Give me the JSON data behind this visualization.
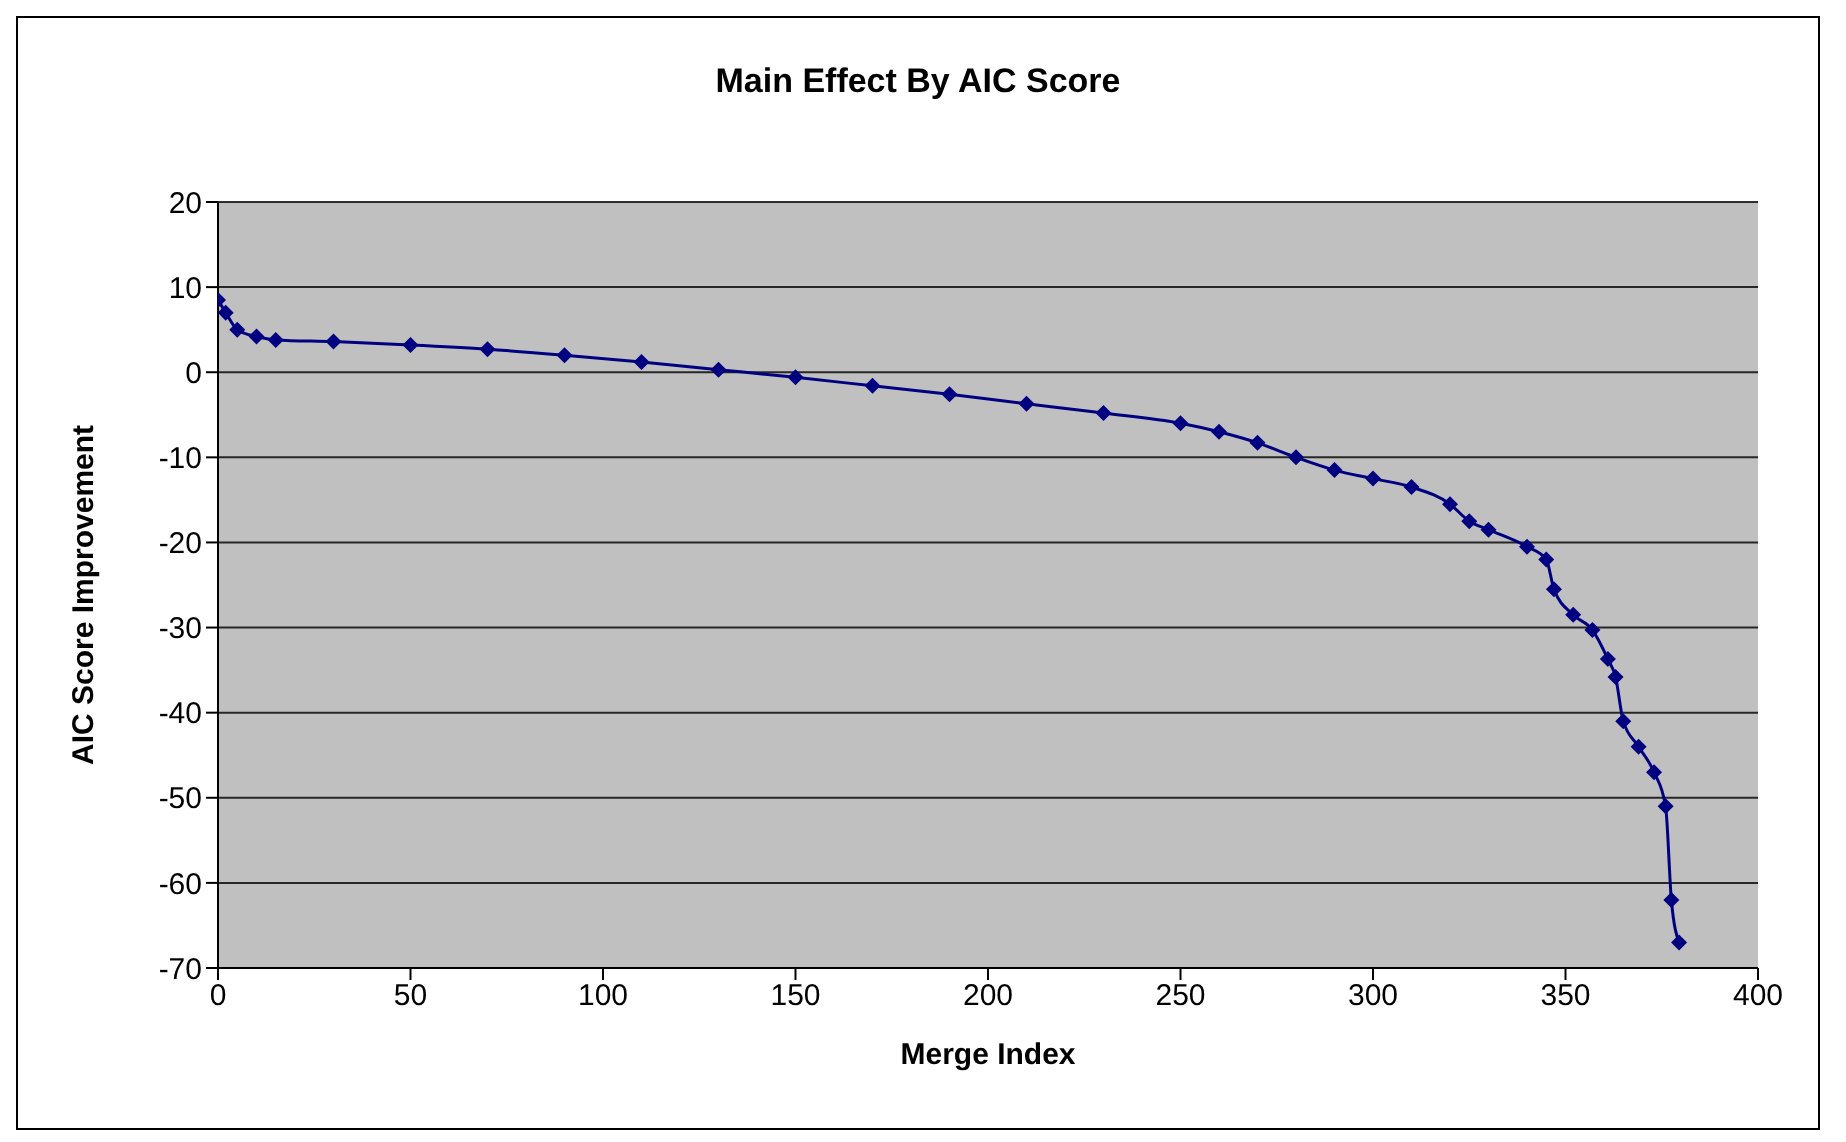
{
  "chart_data": {
    "type": "line",
    "title": "Main Effect By AIC Score",
    "xlabel": "Merge Index",
    "ylabel": "AIC Score Improvement",
    "series": [
      {
        "color": "#000080",
        "x": [
          0,
          2,
          5,
          10,
          15,
          30,
          50,
          70,
          90,
          110,
          130,
          150,
          170,
          190,
          210,
          230,
          250,
          260,
          270,
          280,
          290,
          300,
          310,
          320,
          325,
          330,
          340,
          345,
          347,
          352,
          357,
          361,
          363,
          365,
          369,
          373,
          376,
          377.5,
          379.5
        ],
        "values": [
          8.5,
          7,
          5,
          4.2,
          3.8,
          3.6,
          3.2,
          2.7,
          2,
          1.2,
          0.3,
          -0.6,
          -1.6,
          -2.6,
          -3.7,
          -4.8,
          -6,
          -7,
          -8.3,
          -10,
          -11.5,
          -12.5,
          -13.5,
          -15.5,
          -17.5,
          -18.5,
          -20.5,
          -22,
          -25.5,
          -28.5,
          -30.3,
          -33.7,
          -35.8,
          -41,
          -44,
          -47,
          -51,
          -62,
          -67
        ]
      }
    ],
    "xlim": [
      0,
      400
    ],
    "xticks": [
      0,
      50,
      100,
      150,
      200,
      250,
      300,
      350,
      400
    ],
    "ylim": [
      -70,
      20
    ],
    "yticks": [
      -70,
      -60,
      -50,
      -40,
      -30,
      -20,
      -10,
      0,
      10,
      20
    ],
    "grid": "y",
    "legend": false,
    "marker": "diamond",
    "line_style": "solid"
  }
}
